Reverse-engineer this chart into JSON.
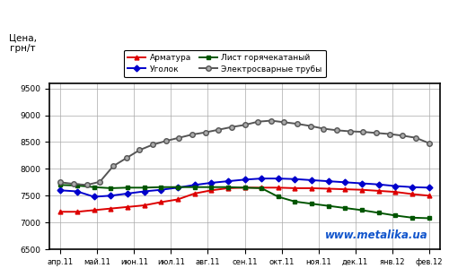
{
  "ylabel": "Цена,\nгрн/т",
  "ylim": [
    6500,
    9600
  ],
  "yticks": [
    6500,
    7000,
    7500,
    8000,
    8500,
    9000,
    9500
  ],
  "x_labels": [
    "апр.11",
    "май.11",
    "июн.11",
    "июл.11",
    "авг.11",
    "сен.11",
    "окт.11",
    "ноя.11",
    "дек.11",
    "янв.12",
    "фев.12"
  ],
  "background_color": "#ffffff",
  "watermark": "www.metalika.ua",
  "watermark_color": "#1155cc",
  "armatура": {
    "label": "Арматура",
    "color": "#dd0000",
    "marker": "^",
    "values": [
      7200,
      7200,
      7230,
      7260,
      7290,
      7320,
      7380,
      7430,
      7540,
      7600,
      7640,
      7650,
      7650,
      7650,
      7640,
      7640,
      7630,
      7620,
      7610,
      7590,
      7570,
      7530,
      7500
    ]
  },
  "ugolok": {
    "label": "Уголок",
    "color": "#0000cc",
    "marker": "D",
    "values": [
      7600,
      7580,
      7480,
      7500,
      7540,
      7580,
      7610,
      7650,
      7700,
      7740,
      7770,
      7800,
      7820,
      7820,
      7810,
      7790,
      7770,
      7750,
      7730,
      7710,
      7680,
      7660,
      7650
    ]
  },
  "list": {
    "label": "Лист горячекатаный",
    "color": "#005500",
    "marker": "s",
    "values": [
      7700,
      7690,
      7660,
      7640,
      7650,
      7650,
      7660,
      7660,
      7660,
      7660,
      7660,
      7650,
      7640,
      7480,
      7390,
      7350,
      7310,
      7270,
      7230,
      7180,
      7130,
      7090,
      7080
    ]
  },
  "truby": {
    "label": "Электросварные трубы",
    "color": "#555555",
    "marker": "o",
    "mfc": "#aaaaaa",
    "values": [
      7750,
      7720,
      7700,
      7760,
      8050,
      8200,
      8350,
      8450,
      8520,
      8580,
      8640,
      8680,
      8730,
      8780,
      8820,
      8880,
      8900,
      8870,
      8840,
      8800,
      8750,
      8720,
      8700,
      8690,
      8670,
      8650,
      8620,
      8580,
      8480
    ]
  }
}
